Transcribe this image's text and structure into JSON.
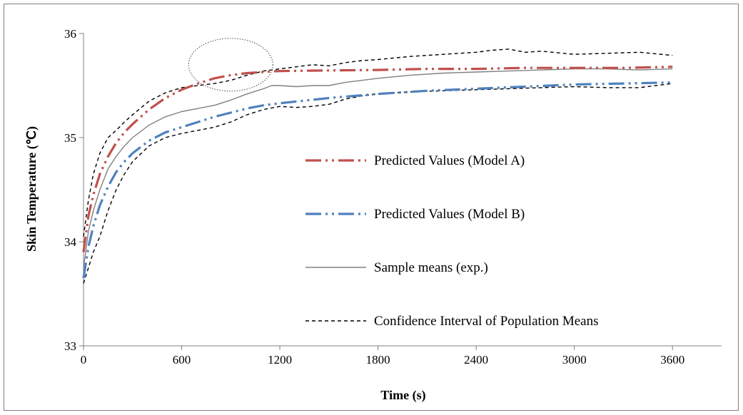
{
  "chart_data": {
    "type": "line",
    "title": "",
    "xlabel": "Time (s)",
    "ylabel": "Skin Temperature (℃)",
    "xlim": [
      0,
      3900
    ],
    "ylim": [
      33,
      36
    ],
    "xticks": [
      0,
      600,
      1200,
      1800,
      2400,
      3000,
      3600
    ],
    "yticks": [
      33,
      34,
      35,
      36
    ],
    "grid": false,
    "legend_placement": "center-right",
    "annotation": "dotted ellipse around t≈900 s, T≈35.55–35.85 ℃",
    "series": [
      {
        "name": "Predicted Values (Model A)",
        "color": "#c0504d",
        "style": "dash-dot-dot",
        "x": [
          0,
          30,
          60,
          100,
          150,
          200,
          250,
          300,
          400,
          500,
          600,
          700,
          800,
          900,
          1000,
          1100,
          1200,
          1500,
          1800,
          2100,
          2400,
          2700,
          3000,
          3300,
          3600
        ],
        "y": [
          33.9,
          34.25,
          34.45,
          34.65,
          34.82,
          34.95,
          35.05,
          35.13,
          35.27,
          35.38,
          35.46,
          35.52,
          35.57,
          35.6,
          35.62,
          35.63,
          35.64,
          35.645,
          35.65,
          35.66,
          35.66,
          35.67,
          35.67,
          35.67,
          35.68
        ]
      },
      {
        "name": "Predicted Values (Model B)",
        "color": "#4f81bd",
        "style": "dash-dot-dot",
        "x": [
          0,
          30,
          60,
          100,
          150,
          200,
          250,
          300,
          400,
          500,
          600,
          700,
          800,
          900,
          1000,
          1100,
          1200,
          1500,
          1800,
          2100,
          2400,
          2700,
          3000,
          3300,
          3600
        ],
        "y": [
          33.65,
          33.95,
          34.15,
          34.35,
          34.53,
          34.67,
          34.77,
          34.85,
          34.97,
          35.05,
          35.1,
          35.15,
          35.2,
          35.24,
          35.28,
          35.31,
          35.33,
          35.38,
          35.42,
          35.45,
          35.47,
          35.49,
          35.51,
          35.52,
          35.53
        ]
      },
      {
        "name": "Sample means (exp.)",
        "color": "#808080",
        "style": "solid",
        "x": [
          0,
          30,
          60,
          100,
          150,
          200,
          250,
          300,
          400,
          500,
          600,
          700,
          800,
          900,
          1000,
          1100,
          1150,
          1200,
          1300,
          1400,
          1500,
          1600,
          1700,
          1800,
          2000,
          2200,
          2400,
          2600,
          2800,
          3000,
          3200,
          3400,
          3600
        ],
        "y": [
          33.75,
          34.1,
          34.3,
          34.5,
          34.7,
          34.82,
          34.92,
          35.0,
          35.12,
          35.2,
          35.25,
          35.28,
          35.31,
          35.36,
          35.42,
          35.47,
          35.5,
          35.5,
          35.49,
          35.5,
          35.5,
          35.53,
          35.55,
          35.57,
          35.6,
          35.62,
          35.63,
          35.64,
          35.65,
          35.66,
          35.66,
          35.65,
          35.66
        ]
      },
      {
        "name": "Confidence Interval of Population Means",
        "color": "#000000",
        "style": "dashed",
        "x": [
          0,
          30,
          60,
          100,
          150,
          200,
          250,
          300,
          400,
          500,
          600,
          700,
          800,
          900,
          1000,
          1100,
          1200,
          1300,
          1400,
          1500,
          1600,
          1700,
          1800,
          2000,
          2200,
          2400,
          2500,
          2600,
          2700,
          2800,
          3000,
          3200,
          3400,
          3600
        ],
        "y": [
          34.05,
          34.4,
          34.65,
          34.85,
          35.0,
          35.07,
          35.15,
          35.22,
          35.35,
          35.43,
          35.48,
          35.5,
          35.52,
          35.55,
          35.6,
          35.64,
          35.66,
          35.68,
          35.7,
          35.69,
          35.72,
          35.74,
          35.75,
          35.78,
          35.8,
          35.82,
          35.84,
          35.85,
          35.82,
          35.83,
          35.8,
          35.81,
          35.82,
          35.79
        ]
      },
      {
        "name": "",
        "color": "#000000",
        "style": "dashed",
        "x": [
          0,
          30,
          60,
          100,
          150,
          200,
          250,
          300,
          400,
          500,
          600,
          700,
          800,
          900,
          1000,
          1100,
          1200,
          1300,
          1400,
          1500,
          1600,
          1700,
          1800,
          2000,
          2200,
          2400,
          2600,
          2800,
          3000,
          3200,
          3400,
          3600
        ],
        "y": [
          33.6,
          33.75,
          33.9,
          34.05,
          34.3,
          34.5,
          34.65,
          34.77,
          34.92,
          35.0,
          35.04,
          35.07,
          35.1,
          35.15,
          35.22,
          35.27,
          35.3,
          35.29,
          35.3,
          35.32,
          35.37,
          35.4,
          35.42,
          35.44,
          35.45,
          35.46,
          35.47,
          35.48,
          35.49,
          35.48,
          35.48,
          35.52
        ]
      }
    ],
    "legend": [
      {
        "label": "Predicted Values (Model A)",
        "color": "#c0504d",
        "style": "dash-dot-dot"
      },
      {
        "label": "Predicted Values (Model B)",
        "color": "#4f81bd",
        "style": "dash-dot-dot"
      },
      {
        "label": "Sample means (exp.)",
        "color": "#808080",
        "style": "solid"
      },
      {
        "label": "Confidence Interval of Population Means",
        "color": "#000000",
        "style": "dashed"
      }
    ]
  }
}
